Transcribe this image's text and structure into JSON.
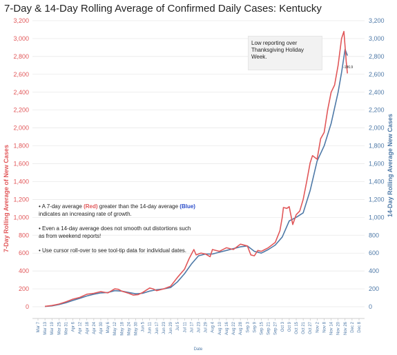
{
  "title": "7-Day & 14-Day Rolling Average of Confirmed Daily  Cases:  Kentucky",
  "note": "Low reporting over Thanksgiving Holiday Week.",
  "last_value_label": "-186.9",
  "explanations": {
    "b1_pre": "• A 7-day average ",
    "b1_red": "(Red)",
    "b1_mid": " greater than the 14-day average ",
    "b1_blue": "(Blue)",
    "b1_post": " indicates an increasing rate of growth.",
    "b2": "• Even a 14-day average does not smooth out distortions such as from weekend reports!",
    "b3": "• Use cursor roll-over to see tool-tip data for individual dates."
  },
  "colors": {
    "seven_day": "#e15759",
    "fourteen_day": "#4e79a7",
    "grid": "#e6e6e6"
  },
  "chart_data": {
    "type": "line",
    "title": "7-Day & 14-Day Rolling Average of Confirmed Daily  Cases:  Kentucky",
    "xlabel": "Date",
    "ylabel_left": "7-Day Rolling  Average of New Cases",
    "ylabel_right": "14-Day Rolling Average New Cases",
    "ylim": [
      0,
      3200
    ],
    "grid": true,
    "y_ticks": [
      "0",
      "200",
      "400",
      "600",
      "800",
      "1,000",
      "1,200",
      "1,400",
      "1,600",
      "1,800",
      "2,000",
      "2,200",
      "2,400",
      "2,600",
      "2,800",
      "3,000",
      "3,200"
    ],
    "x_ticks": [
      "Mar 7",
      "Mar 13",
      "Mar 19",
      "Mar 25",
      "Mar 31",
      "Apr 6",
      "Apr 12",
      "Apr 18",
      "Apr 24",
      "Apr 30",
      "May 6",
      "May 12",
      "May 18",
      "May 24",
      "May 30",
      "Jun 5",
      "Jun 11",
      "Jun 17",
      "Jun 23",
      "Jun 29",
      "Jul 5",
      "Jul 11",
      "Jul 17",
      "Jul 23",
      "Jul 29",
      "Aug 4",
      "Aug 10",
      "Aug 16",
      "Aug 22",
      "Aug 28",
      "Sep 3",
      "Sep 9",
      "Sep 15",
      "Sep 21",
      "Sep 27",
      "Oct 3",
      "Oct 9",
      "Oct 15",
      "Oct 21",
      "Oct 27",
      "Nov 2",
      "Nov 8",
      "Nov 14",
      "Nov 20",
      "Nov 26",
      "Dec 2",
      "Dec 8"
    ],
    "series": [
      {
        "name": "7-Day Rolling Average",
        "axis": "left",
        "points": [
          [
            "Mar 13",
            5
          ],
          [
            "Mar 19",
            14
          ],
          [
            "Mar 25",
            30
          ],
          [
            "Mar 31",
            55
          ],
          [
            "Apr 6",
            85
          ],
          [
            "Apr 12",
            105
          ],
          [
            "Apr 18",
            140
          ],
          [
            "Apr 24",
            150
          ],
          [
            "Apr 30",
            170
          ],
          [
            "May 6",
            155
          ],
          [
            "May 12",
            200
          ],
          [
            "May 15",
            195
          ],
          [
            "May 18",
            175
          ],
          [
            "May 24",
            150
          ],
          [
            "May 28",
            130
          ],
          [
            "Jun 1",
            135
          ],
          [
            "Jun 5",
            160
          ],
          [
            "Jun 11",
            210
          ],
          [
            "Jun 14",
            200
          ],
          [
            "Jun 17",
            180
          ],
          [
            "Jun 23",
            200
          ],
          [
            "Jun 29",
            230
          ],
          [
            "Jul 5",
            330
          ],
          [
            "Jul 11",
            420
          ],
          [
            "Jul 15",
            540
          ],
          [
            "Jul 19",
            640
          ],
          [
            "Jul 21",
            580
          ],
          [
            "Jul 25",
            600
          ],
          [
            "Jul 29",
            590
          ],
          [
            "Aug 2",
            560
          ],
          [
            "Aug 4",
            640
          ],
          [
            "Aug 10",
            620
          ],
          [
            "Aug 16",
            660
          ],
          [
            "Aug 22",
            640
          ],
          [
            "Aug 28",
            700
          ],
          [
            "Sep 3",
            680
          ],
          [
            "Sep 6",
            580
          ],
          [
            "Sep 9",
            570
          ],
          [
            "Sep 12",
            630
          ],
          [
            "Sep 15",
            620
          ],
          [
            "Sep 21",
            660
          ],
          [
            "Sep 27",
            720
          ],
          [
            "Oct 1",
            850
          ],
          [
            "Oct 3",
            1000
          ],
          [
            "Oct 4",
            1110
          ],
          [
            "Oct 7",
            1100
          ],
          [
            "Oct 9",
            1120
          ],
          [
            "Oct 12",
            920
          ],
          [
            "Oct 15",
            1030
          ],
          [
            "Oct 18",
            1070
          ],
          [
            "Oct 21",
            1200
          ],
          [
            "Oct 24",
            1400
          ],
          [
            "Oct 27",
            1610
          ],
          [
            "Oct 29",
            1690
          ],
          [
            "Nov 2",
            1650
          ],
          [
            "Nov 5",
            1880
          ],
          [
            "Nov 8",
            1950
          ],
          [
            "Nov 11",
            2200
          ],
          [
            "Nov 14",
            2400
          ],
          [
            "Nov 17",
            2480
          ],
          [
            "Nov 20",
            2700
          ],
          [
            "Nov 23",
            3000
          ],
          [
            "Nov 25",
            3080
          ],
          [
            "Nov 27",
            2740
          ],
          [
            "Nov 28",
            2610
          ]
        ]
      },
      {
        "name": "14-Day Rolling Average",
        "axis": "right",
        "points": [
          [
            "Mar 13",
            3
          ],
          [
            "Mar 19",
            10
          ],
          [
            "Mar 25",
            25
          ],
          [
            "Mar 31",
            45
          ],
          [
            "Apr 6",
            70
          ],
          [
            "Apr 12",
            95
          ],
          [
            "Apr 18",
            120
          ],
          [
            "Apr 24",
            140
          ],
          [
            "Apr 30",
            155
          ],
          [
            "May 6",
            160
          ],
          [
            "May 12",
            180
          ],
          [
            "May 18",
            175
          ],
          [
            "May 24",
            160
          ],
          [
            "May 30",
            145
          ],
          [
            "Jun 5",
            150
          ],
          [
            "Jun 11",
            175
          ],
          [
            "Jun 17",
            190
          ],
          [
            "Jun 23",
            200
          ],
          [
            "Jun 29",
            215
          ],
          [
            "Jul 5",
            280
          ],
          [
            "Jul 11",
            370
          ],
          [
            "Jul 17",
            480
          ],
          [
            "Jul 23",
            570
          ],
          [
            "Jul 29",
            590
          ],
          [
            "Aug 4",
            590
          ],
          [
            "Aug 10",
            610
          ],
          [
            "Aug 16",
            630
          ],
          [
            "Aug 22",
            650
          ],
          [
            "Aug 28",
            670
          ],
          [
            "Sep 3",
            680
          ],
          [
            "Sep 9",
            620
          ],
          [
            "Sep 15",
            600
          ],
          [
            "Sep 21",
            640
          ],
          [
            "Sep 27",
            690
          ],
          [
            "Oct 3",
            780
          ],
          [
            "Oct 9",
            960
          ],
          [
            "Oct 15",
            1000
          ],
          [
            "Oct 21",
            1050
          ],
          [
            "Oct 27",
            1300
          ],
          [
            "Nov 2",
            1630
          ],
          [
            "Nov 8",
            1800
          ],
          [
            "Nov 14",
            2050
          ],
          [
            "Nov 20",
            2400
          ],
          [
            "Nov 23",
            2620
          ],
          [
            "Nov 26",
            2880
          ],
          [
            "Nov 28",
            2810
          ]
        ]
      }
    ]
  }
}
